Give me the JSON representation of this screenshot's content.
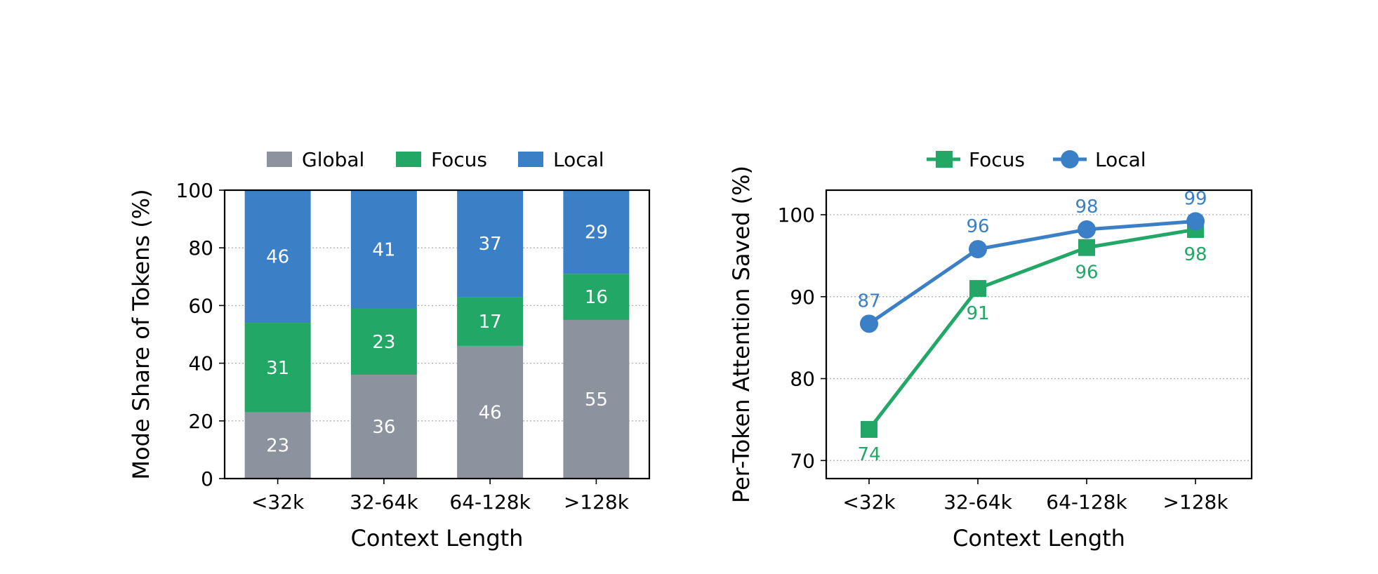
{
  "colors": {
    "global": "#8c939f",
    "focus": "#22a767",
    "local": "#3b80c6",
    "axis": "#000000",
    "grid": "#b0b0b0",
    "bar_label": "#ffffff"
  },
  "chart_data": [
    {
      "type": "bar",
      "stacked": true,
      "categories": [
        "<32k",
        "32-64k",
        "64-128k",
        ">128k"
      ],
      "series": [
        {
          "name": "Global",
          "color_key": "global",
          "values": [
            23,
            36,
            46,
            55
          ]
        },
        {
          "name": "Focus",
          "color_key": "focus",
          "values": [
            31,
            23,
            17,
            16
          ]
        },
        {
          "name": "Local",
          "color_key": "local",
          "values": [
            46,
            41,
            37,
            29
          ]
        }
      ],
      "xlabel": "Context Length",
      "ylabel": "Mode Share of Tokens (%)",
      "ylim": [
        0,
        100
      ],
      "yticks": [
        0,
        20,
        40,
        60,
        80,
        100
      ],
      "grid": "y-dotted",
      "legend": "top-center"
    },
    {
      "type": "line",
      "categories": [
        "<32k",
        "32-64k",
        "64-128k",
        ">128k"
      ],
      "series": [
        {
          "name": "Focus",
          "color_key": "focus",
          "marker": "square",
          "values": [
            73.8,
            91.0,
            96.0,
            98.2
          ],
          "labels": [
            "74",
            "91",
            "96",
            "98"
          ],
          "label_position": "below"
        },
        {
          "name": "Local",
          "color_key": "local",
          "marker": "circle",
          "values": [
            86.7,
            95.8,
            98.2,
            99.2
          ],
          "labels": [
            "87",
            "96",
            "98",
            "99"
          ],
          "label_position": "above"
        }
      ],
      "xlabel": "Context Length",
      "ylabel": "Per-Token Attention Saved (%)",
      "ylim": [
        67.8,
        103.0
      ],
      "yticks": [
        70,
        80,
        90,
        100
      ],
      "grid": "y-dotted",
      "legend": "top-center"
    }
  ]
}
